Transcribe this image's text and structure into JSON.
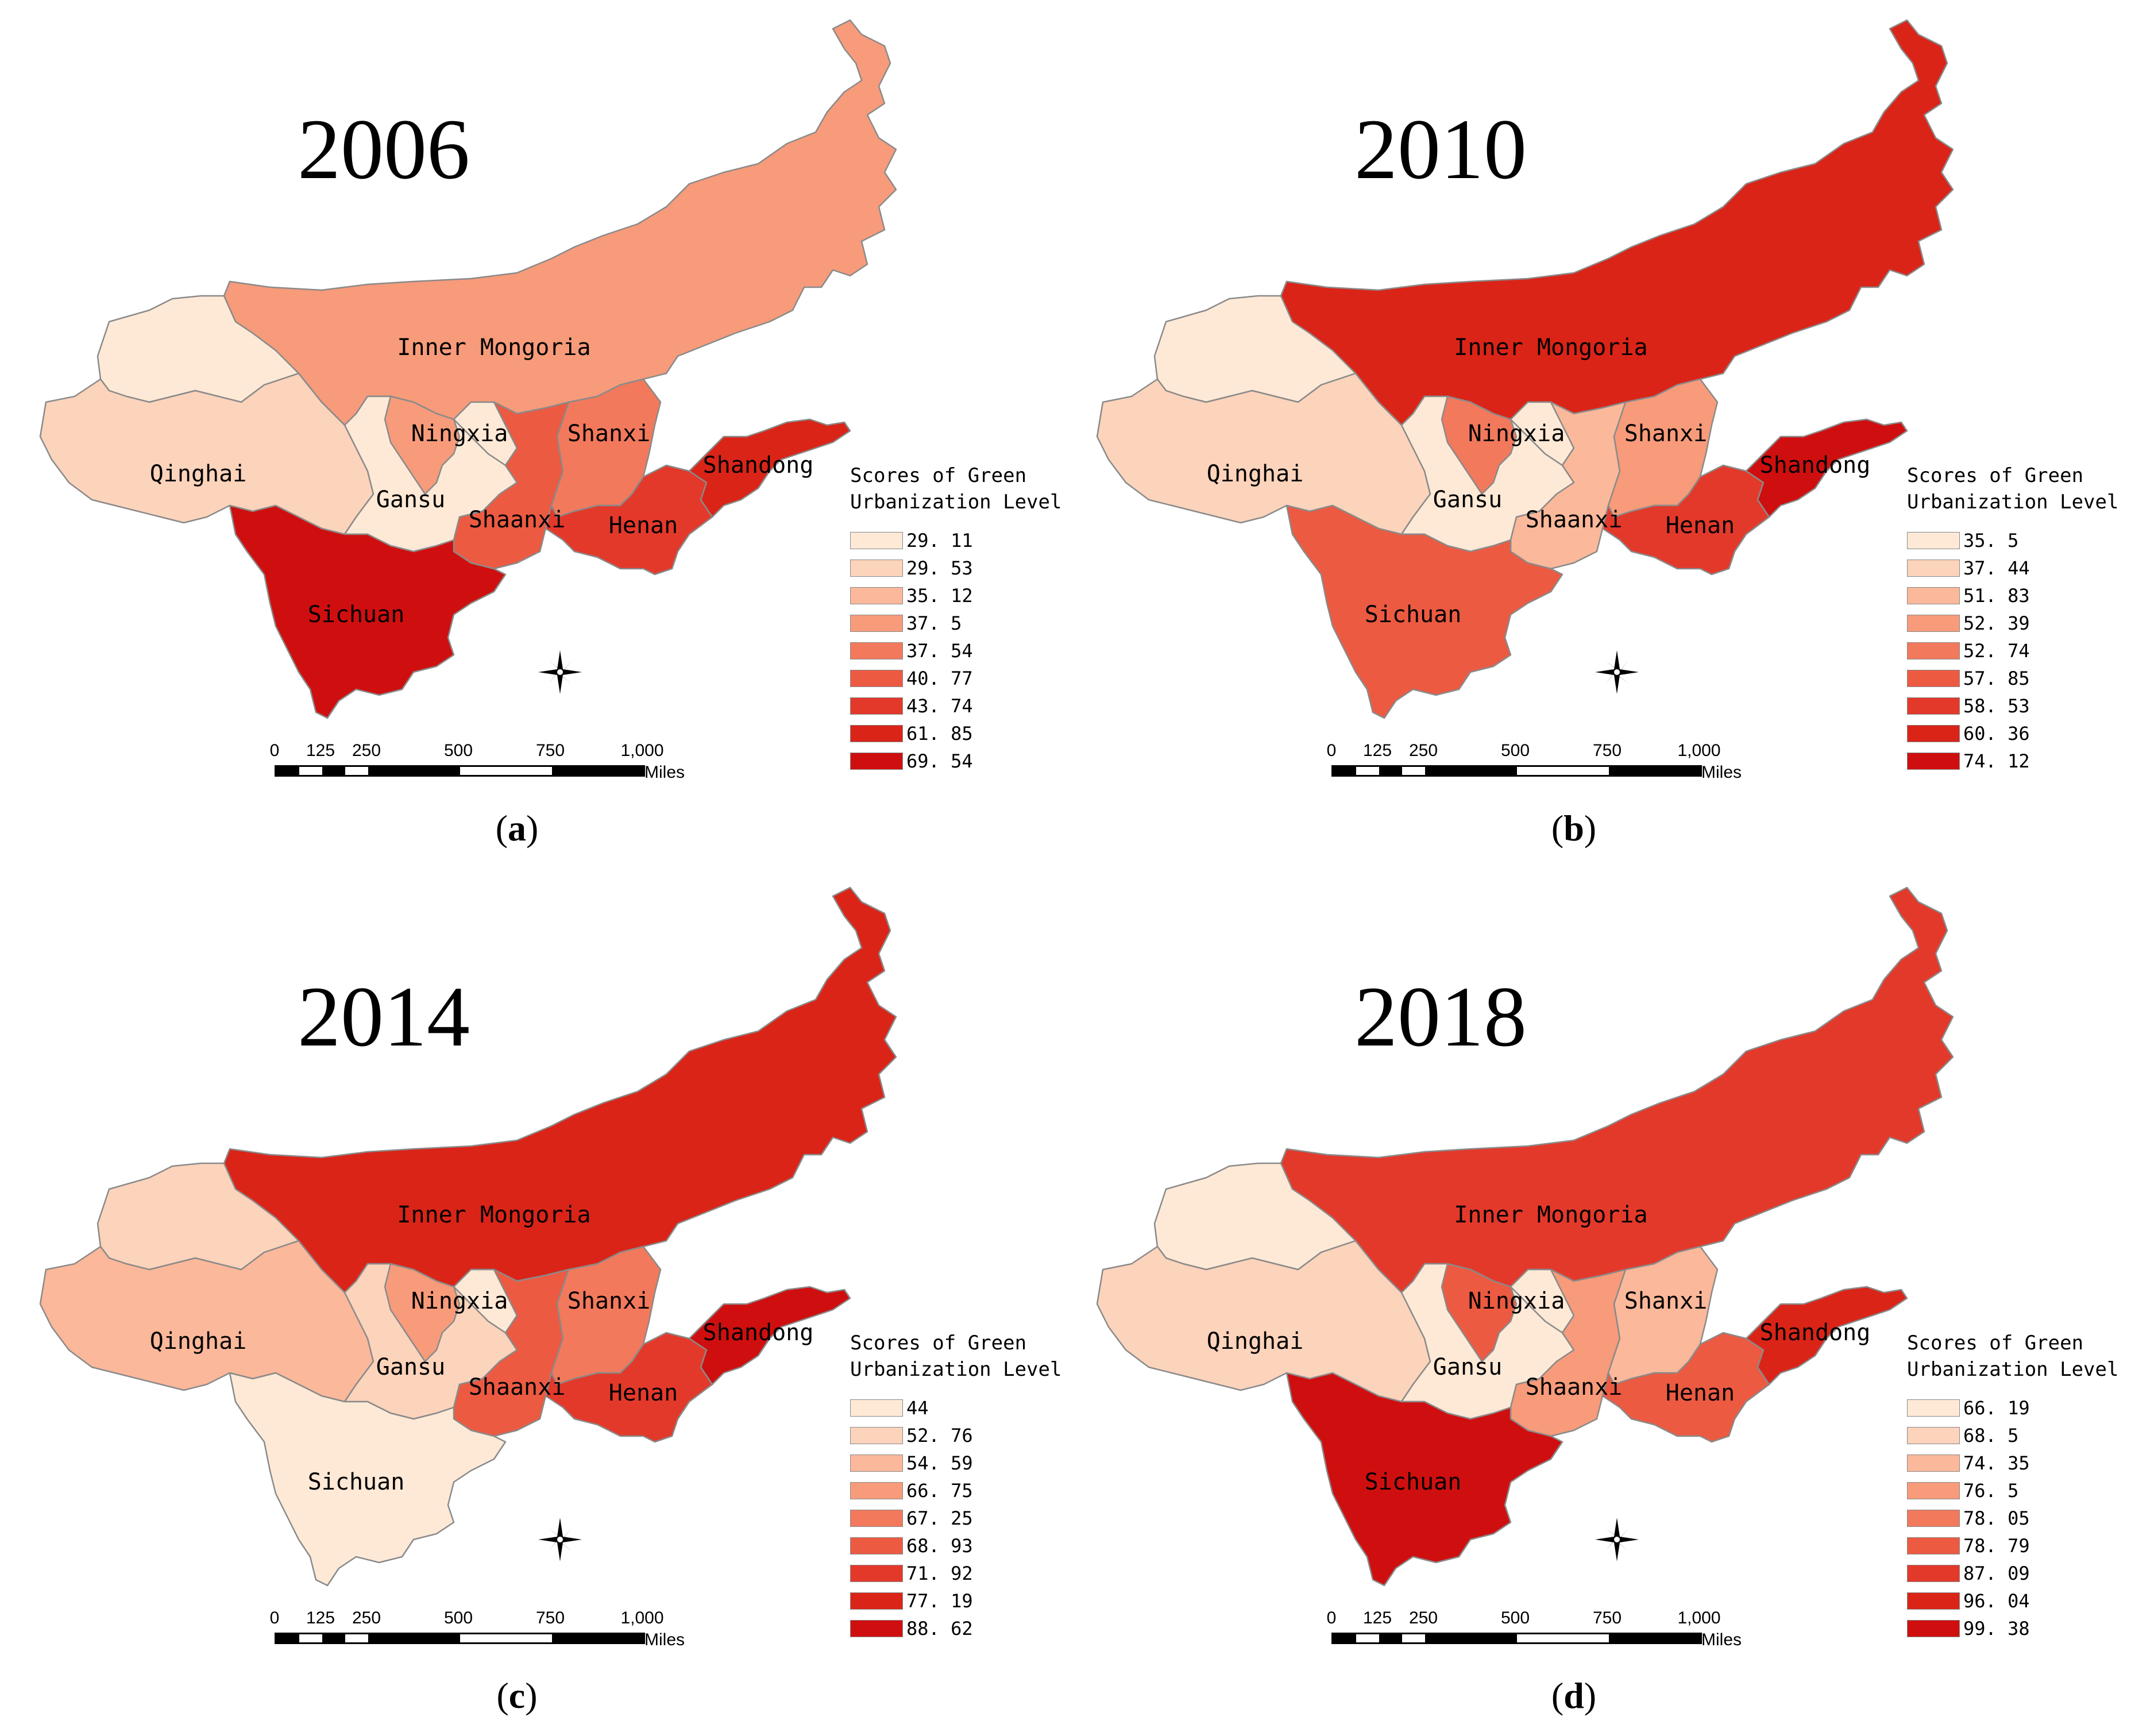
{
  "colors": {
    "c1": "#fee9d6",
    "c2": "#fcd3bb",
    "c3": "#fbb89a",
    "c4": "#f79b7a",
    "c5": "#f2795c",
    "c6": "#ec5a42",
    "c7": "#e3392b",
    "c8": "#da2418",
    "c9": "#cf0f0f",
    "border": "#8a8a8a"
  },
  "legend_title_line1": "Scores of Green",
  "legend_title_line2": "Urbanization Level",
  "scalebar": {
    "ticks": [
      "0",
      "125",
      "250",
      "500",
      "750",
      "1,000"
    ],
    "unit": "Miles"
  },
  "panels": [
    {
      "year": "2006",
      "caption": "a",
      "legend": [
        "29. 11",
        "29. 53",
        "35. 12",
        "37. 5",
        "37. 54",
        "40. 77",
        "43. 74",
        "61. 85",
        "69. 54"
      ],
      "provinces": {
        "inner_mongoria": {
          "label": "Inner Mongoria",
          "class": 4
        },
        "qinghai": {
          "label": "Qinghai",
          "class": 2
        },
        "xinjiang_east": {
          "label": "",
          "class": 1
        },
        "gansu": {
          "label": "Gansu",
          "class": 1
        },
        "ningxia": {
          "label": "Ningxia",
          "class": 4
        },
        "ningxia_east": {
          "label": "",
          "class": 1
        },
        "shaanxi": {
          "label": "Shaanxi",
          "class": 6
        },
        "shanxi": {
          "label": "Shanxi",
          "class": 5
        },
        "henan": {
          "label": "Henan",
          "class": 7
        },
        "shandong": {
          "label": "Shandong",
          "class": 8
        },
        "sichuan": {
          "label": "Sichuan",
          "class": 9
        }
      }
    },
    {
      "year": "2010",
      "caption": "b",
      "legend": [
        "35. 5",
        "37. 44",
        "51. 83",
        "52. 39",
        "52. 74",
        "57. 85",
        "58. 53",
        "60. 36",
        "74. 12"
      ],
      "provinces": {
        "inner_mongoria": {
          "label": "Inner Mongoria",
          "class": 8
        },
        "qinghai": {
          "label": "Qinghai",
          "class": 2
        },
        "xinjiang_east": {
          "label": "",
          "class": 1
        },
        "gansu": {
          "label": "Gansu",
          "class": 1
        },
        "ningxia": {
          "label": "Ningxia",
          "class": 5
        },
        "ningxia_east": {
          "label": "",
          "class": 1
        },
        "shaanxi": {
          "label": "Shaanxi",
          "class": 3
        },
        "shanxi": {
          "label": "Shanxi",
          "class": 4
        },
        "henan": {
          "label": "Henan",
          "class": 7
        },
        "shandong": {
          "label": "Shandong",
          "class": 9
        },
        "sichuan": {
          "label": "Sichuan",
          "class": 6
        }
      }
    },
    {
      "year": "2014",
      "caption": "c",
      "legend": [
        "44",
        "52. 76",
        "54. 59",
        "66. 75",
        "67. 25",
        "68. 93",
        "71. 92",
        "77. 19",
        "88. 62"
      ],
      "provinces": {
        "inner_mongoria": {
          "label": "Inner Mongoria",
          "class": 8
        },
        "qinghai": {
          "label": "Qinghai",
          "class": 3
        },
        "xinjiang_east": {
          "label": "",
          "class": 2
        },
        "gansu": {
          "label": "Gansu",
          "class": 2
        },
        "ningxia": {
          "label": "Ningxia",
          "class": 4
        },
        "ningxia_east": {
          "label": "",
          "class": 1
        },
        "shaanxi": {
          "label": "Shaanxi",
          "class": 6
        },
        "shanxi": {
          "label": "Shanxi",
          "class": 5
        },
        "henan": {
          "label": "Henan",
          "class": 7
        },
        "shandong": {
          "label": "Shandong",
          "class": 9
        },
        "sichuan": {
          "label": "Sichuan",
          "class": 1
        }
      }
    },
    {
      "year": "2018",
      "caption": "d",
      "legend": [
        "66. 19",
        "68. 5",
        "74. 35",
        "76. 5",
        "78. 05",
        "78. 79",
        "87. 09",
        "96. 04",
        "99. 38"
      ],
      "provinces": {
        "inner_mongoria": {
          "label": "Inner Mongoria",
          "class": 7
        },
        "qinghai": {
          "label": "Qinghai",
          "class": 2
        },
        "xinjiang_east": {
          "label": "",
          "class": 1
        },
        "gansu": {
          "label": "Gansu",
          "class": 1
        },
        "ningxia": {
          "label": "Ningxia",
          "class": 6
        },
        "ningxia_east": {
          "label": "",
          "class": 1
        },
        "shaanxi": {
          "label": "Shaanxi",
          "class": 4
        },
        "shanxi": {
          "label": "Shanxi",
          "class": 3
        },
        "henan": {
          "label": "Henan",
          "class": 6
        },
        "shandong": {
          "label": "Shandong",
          "class": 8
        },
        "sichuan": {
          "label": "Sichuan",
          "class": 9
        }
      }
    }
  ]
}
